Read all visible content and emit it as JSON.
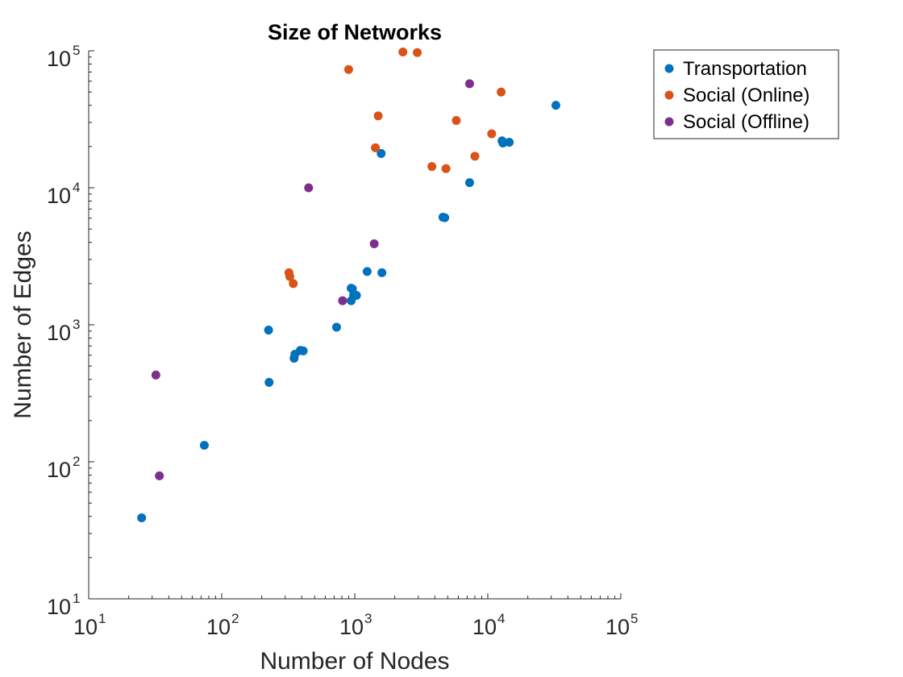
{
  "chart_data": {
    "type": "scatter",
    "title": "Size of Networks",
    "xlabel": "Number of Nodes",
    "ylabel": "Number of Edges",
    "xscale": "log",
    "yscale": "log",
    "xlim": [
      10,
      100000
    ],
    "ylim": [
      10,
      100000
    ],
    "grid": false,
    "legend_position": "top-right outside",
    "x_ticks": [
      {
        "base": "10",
        "exp": "1",
        "value": 10
      },
      {
        "base": "10",
        "exp": "2",
        "value": 100
      },
      {
        "base": "10",
        "exp": "3",
        "value": 1000
      },
      {
        "base": "10",
        "exp": "4",
        "value": 10000
      },
      {
        "base": "10",
        "exp": "5",
        "value": 100000
      }
    ],
    "y_ticks": [
      {
        "base": "10",
        "exp": "1",
        "value": 10
      },
      {
        "base": "10",
        "exp": "2",
        "value": 100
      },
      {
        "base": "10",
        "exp": "3",
        "value": 1000
      },
      {
        "base": "10",
        "exp": "4",
        "value": 10000
      },
      {
        "base": "10",
        "exp": "5",
        "value": 100000
      }
    ],
    "series": [
      {
        "name": "Transportation",
        "color": "#0072BD",
        "points": [
          [
            25,
            39
          ],
          [
            74,
            132
          ],
          [
            227,
            380
          ],
          [
            225,
            915
          ],
          [
            350,
            570
          ],
          [
            355,
            610
          ],
          [
            390,
            650
          ],
          [
            410,
            645
          ],
          [
            730,
            960
          ],
          [
            940,
            1500
          ],
          [
            940,
            1850
          ],
          [
            960,
            1830
          ],
          [
            980,
            1650
          ],
          [
            1030,
            1640
          ],
          [
            1240,
            2450
          ],
          [
            1600,
            2400
          ],
          [
            1580,
            17800
          ],
          [
            4600,
            6100
          ],
          [
            4750,
            6050
          ],
          [
            7300,
            10900
          ],
          [
            12800,
            22000
          ],
          [
            13000,
            21200
          ],
          [
            14500,
            21500
          ],
          [
            32500,
            40000
          ]
        ]
      },
      {
        "name": "Social (Online)",
        "color": "#D95319",
        "points": [
          [
            320,
            2400
          ],
          [
            325,
            2250
          ],
          [
            345,
            2000
          ],
          [
            900,
            73000
          ],
          [
            1430,
            19600
          ],
          [
            1500,
            33500
          ],
          [
            2300,
            98000
          ],
          [
            2950,
            97000
          ],
          [
            3800,
            14300
          ],
          [
            4850,
            13800
          ],
          [
            5800,
            31000
          ],
          [
            8000,
            17000
          ],
          [
            10700,
            24800
          ],
          [
            12600,
            50000
          ]
        ]
      },
      {
        "name": "Social (Offline)",
        "color": "#7E2F8E",
        "points": [
          [
            32,
            430
          ],
          [
            34,
            79
          ],
          [
            450,
            10000
          ],
          [
            810,
            1500
          ],
          [
            1400,
            3900
          ],
          [
            7300,
            57500
          ]
        ]
      }
    ]
  }
}
